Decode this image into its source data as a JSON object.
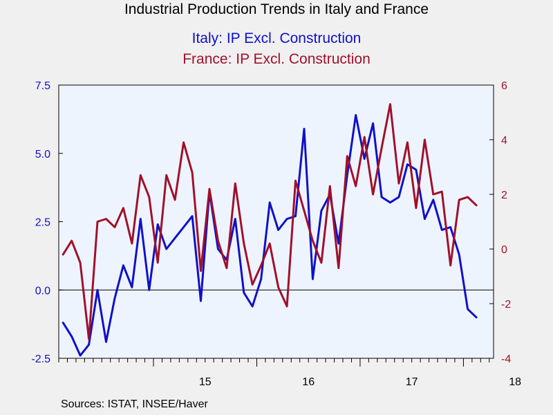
{
  "chart_data": {
    "type": "line",
    "title": "Industrial Production Trends in Italy and France",
    "subtitle_lines": [
      "Italy: IP Excl. Construction",
      "France: IP Excl. Construction"
    ],
    "source": "Sources:  ISTAT, INSEE/Haver",
    "x_tick_labels": [
      "15",
      "16",
      "17",
      "18"
    ],
    "left_axis": {
      "ylim": [
        -2.5,
        7.5
      ],
      "ticks": [
        "-2.5",
        "0.0",
        "2.5",
        "5.0",
        "7.5"
      ],
      "color": "#1010c8"
    },
    "right_axis": {
      "ylim": [
        -4,
        6
      ],
      "ticks": [
        "-4",
        "-2",
        "0",
        "2",
        "4",
        "6"
      ],
      "color": "#a0102a"
    },
    "x_start": "2014-02",
    "x_end": "2018-03",
    "series": [
      {
        "name": "Italy: IP Excl. Construction",
        "axis": "left",
        "color": "#1010c8",
        "values": [
          -1.2,
          -1.7,
          -2.4,
          -2.0,
          0.0,
          -1.9,
          -0.3,
          0.9,
          0.1,
          2.6,
          0.0,
          2.4,
          1.5,
          1.9,
          2.3,
          2.7,
          -0.4,
          3.6,
          1.5,
          1.1,
          2.6,
          -0.1,
          -0.6,
          0.4,
          3.2,
          2.2,
          2.6,
          2.7,
          5.9,
          0.4,
          2.9,
          3.5,
          1.7,
          4.2,
          6.4,
          4.8,
          6.1,
          3.4,
          3.2,
          3.4,
          4.6,
          4.4,
          2.6,
          3.3,
          2.2,
          2.3,
          1.3,
          -0.7,
          -1.0
        ],
        "confidence": "approximate"
      },
      {
        "name": "France: IP Excl. Construction",
        "axis": "right",
        "color": "#a0102a",
        "values": [
          -0.2,
          0.3,
          -0.5,
          -3.3,
          1.0,
          1.1,
          0.8,
          1.5,
          0.2,
          2.7,
          1.9,
          -0.5,
          2.7,
          1.8,
          3.9,
          2.8,
          -0.8,
          2.2,
          0.3,
          -0.7,
          2.4,
          0.2,
          -1.3,
          -0.6,
          0.2,
          -1.4,
          -2.1,
          2.5,
          1.4,
          0.3,
          -0.5,
          2.3,
          -0.7,
          3.4,
          2.3,
          4.1,
          2.0,
          3.7,
          5.3,
          2.4,
          3.9,
          1.5,
          4.0,
          2.0,
          2.1,
          -0.6,
          1.8,
          1.9,
          1.6
        ],
        "confidence": "approximate"
      }
    ],
    "grid": false,
    "zero_line": true,
    "plot_background": "#eef4fe"
  }
}
